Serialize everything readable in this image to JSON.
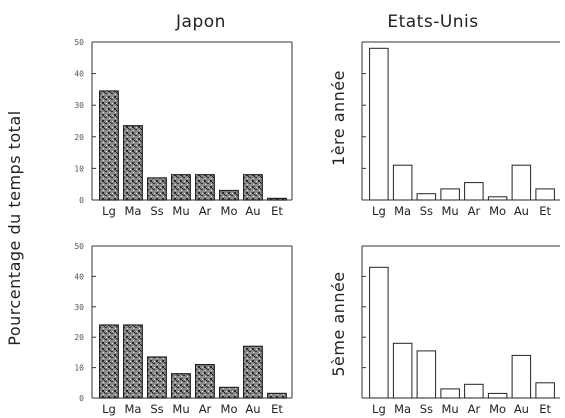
{
  "figure": {
    "column_titles": [
      "Japon",
      "Etats-Unis"
    ],
    "ylabel_left": "Pourcentage du temps total",
    "row_labels_right": [
      "1ère année",
      "5ème année"
    ],
    "colors": {
      "stipple_dark": "#3a3a3a",
      "stipple_light": "#ffffff",
      "axis": "#333333"
    }
  },
  "chart_data": [
    {
      "type": "bar",
      "id": "japon-1",
      "categories": [
        "Lg",
        "Ma",
        "Ss",
        "Mu",
        "Ar",
        "Mo",
        "Au",
        "Et"
      ],
      "values": [
        34.5,
        23.5,
        7,
        8,
        8,
        3,
        8,
        0.5
      ],
      "ylim": [
        0,
        50
      ],
      "yticks": [
        0,
        10,
        20,
        30,
        40,
        50
      ],
      "fill": "stippled",
      "row": 1,
      "col": 1
    },
    {
      "type": "bar",
      "id": "usa-1",
      "categories": [
        "Lg",
        "Ma",
        "Ss",
        "Mu",
        "Ar",
        "Mo",
        "Au",
        "Et"
      ],
      "values": [
        48,
        11,
        2,
        3.5,
        5.5,
        1,
        11,
        3.5
      ],
      "ylim": [
        0,
        50
      ],
      "fill": "white",
      "row": 1,
      "col": 2
    },
    {
      "type": "bar",
      "id": "japon-5",
      "categories": [
        "Lg",
        "Ma",
        "Ss",
        "Mu",
        "Ar",
        "Mo",
        "Au",
        "Et"
      ],
      "values": [
        24,
        24,
        13.5,
        8,
        11,
        3.5,
        17,
        1.5
      ],
      "ylim": [
        0,
        50
      ],
      "yticks": [
        0,
        10,
        20,
        30,
        40,
        50
      ],
      "fill": "stippled",
      "row": 2,
      "col": 1
    },
    {
      "type": "bar",
      "id": "usa-5",
      "categories": [
        "Lg",
        "Ma",
        "Ss",
        "Mu",
        "Ar",
        "Mo",
        "Au",
        "Et"
      ],
      "values": [
        43,
        18,
        15.5,
        3,
        4.5,
        1.5,
        14,
        5
      ],
      "ylim": [
        0,
        50
      ],
      "fill": "white",
      "row": 2,
      "col": 2
    }
  ]
}
